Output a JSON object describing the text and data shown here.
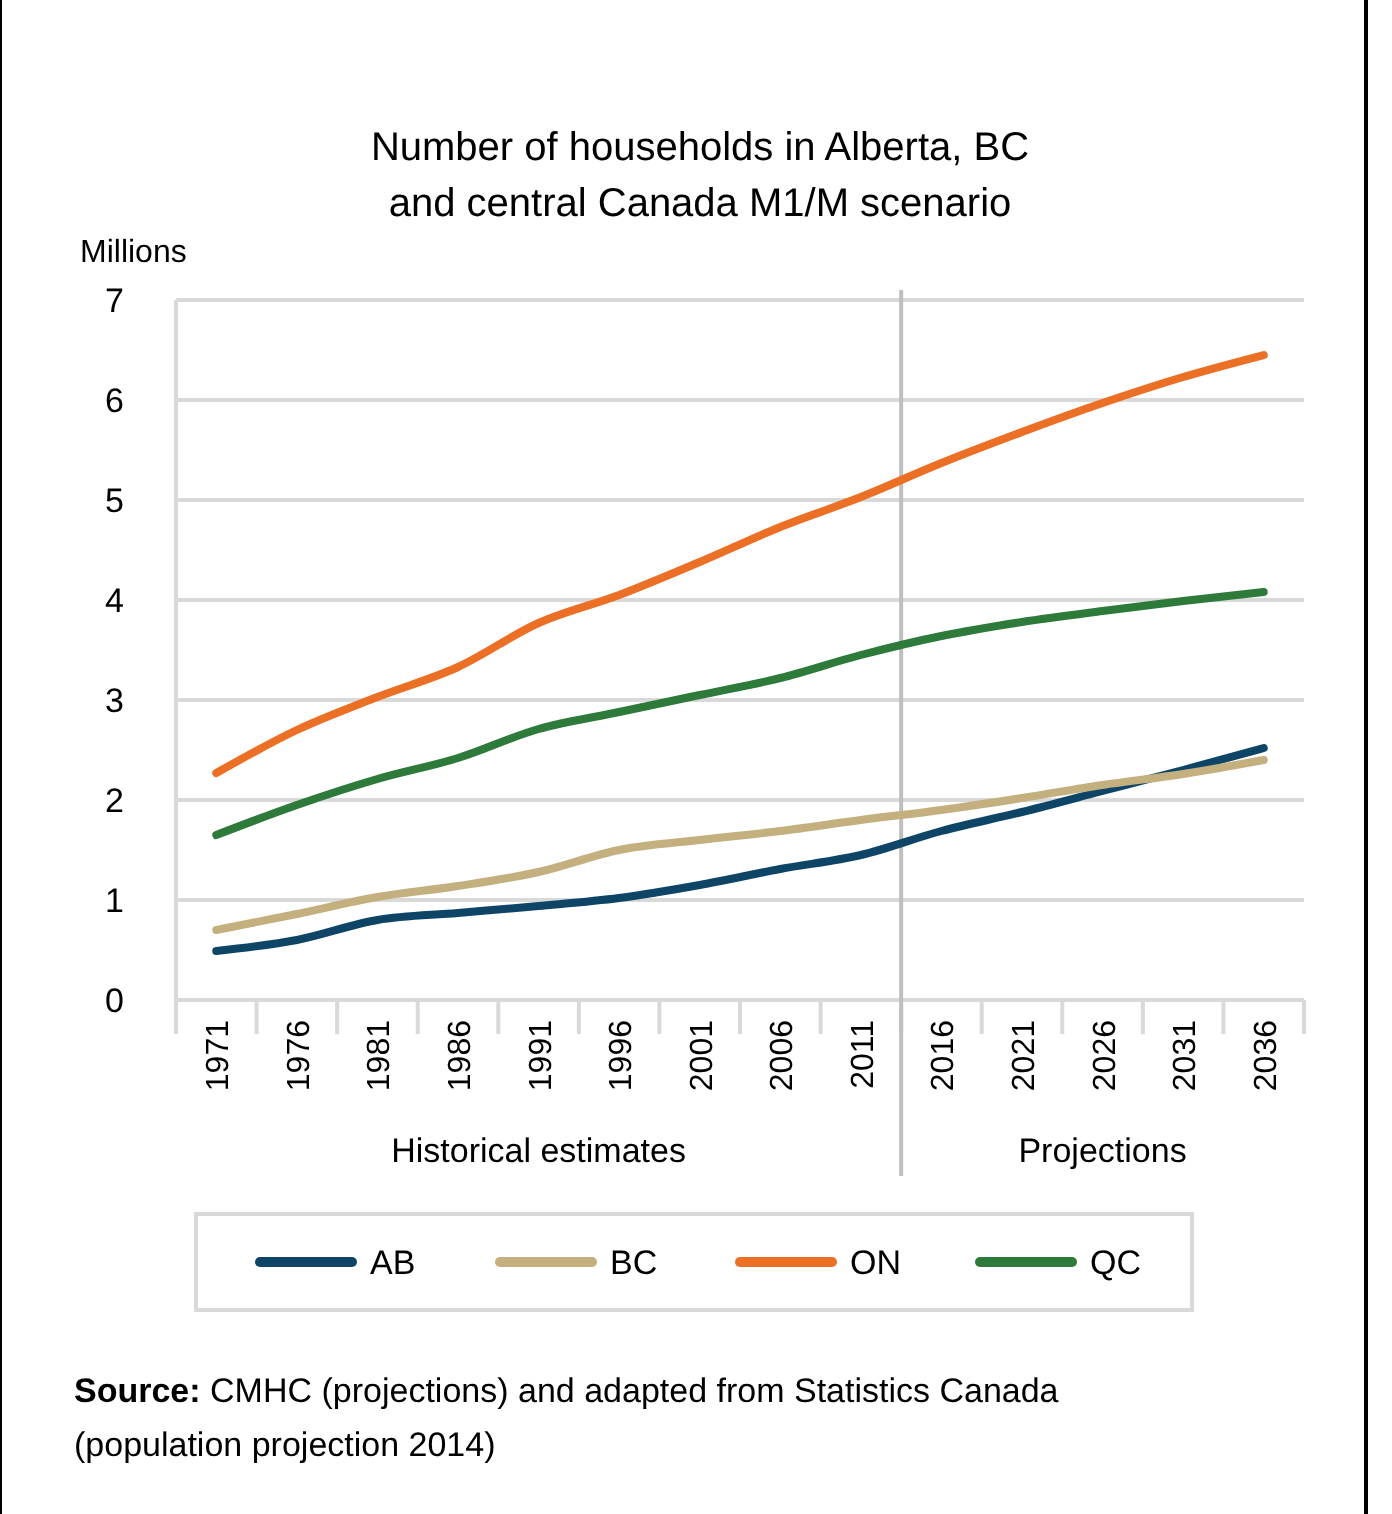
{
  "chart_data": {
    "type": "line",
    "title": "Number of households in Alberta, BC\nand central Canada M1/M scenario",
    "ylabel": "Millions",
    "categories": [
      "1971",
      "1976",
      "1981",
      "1986",
      "1991",
      "1996",
      "2001",
      "2006",
      "2011",
      "2016",
      "2021",
      "2026",
      "2031",
      "2036"
    ],
    "series": [
      {
        "name": "AB",
        "color": "#0e4466",
        "values": [
          0.49,
          0.6,
          0.8,
          0.87,
          0.94,
          1.02,
          1.15,
          1.31,
          1.45,
          1.69,
          1.88,
          2.09,
          2.3,
          2.52
        ]
      },
      {
        "name": "BC",
        "color": "#c4b07e",
        "values": [
          0.7,
          0.86,
          1.03,
          1.14,
          1.28,
          1.5,
          1.6,
          1.69,
          1.8,
          1.9,
          2.02,
          2.15,
          2.26,
          2.4
        ]
      },
      {
        "name": "ON",
        "color": "#ec6f26",
        "values": [
          2.27,
          2.7,
          3.03,
          3.33,
          3.77,
          4.05,
          4.38,
          4.73,
          5.03,
          5.37,
          5.68,
          5.97,
          6.23,
          6.45
        ]
      },
      {
        "name": "QC",
        "color": "#2e7a3a",
        "values": [
          1.65,
          1.95,
          2.21,
          2.42,
          2.71,
          2.88,
          3.05,
          3.22,
          3.45,
          3.64,
          3.78,
          3.89,
          3.99,
          4.08
        ]
      }
    ],
    "ylim": [
      0,
      7
    ],
    "yticks": [
      0,
      1,
      2,
      3,
      4,
      5,
      6,
      7
    ],
    "grid": "y",
    "legend": "bottom",
    "ref_lines": [
      {
        "axis": "x",
        "value": "2016",
        "color": "#bfbfbf"
      }
    ],
    "annotations": [
      "Historical estimates",
      "Projections",
      "Source: CMHC (projections) and adapted from Statistics Canada (population projection 2014)"
    ]
  }
}
